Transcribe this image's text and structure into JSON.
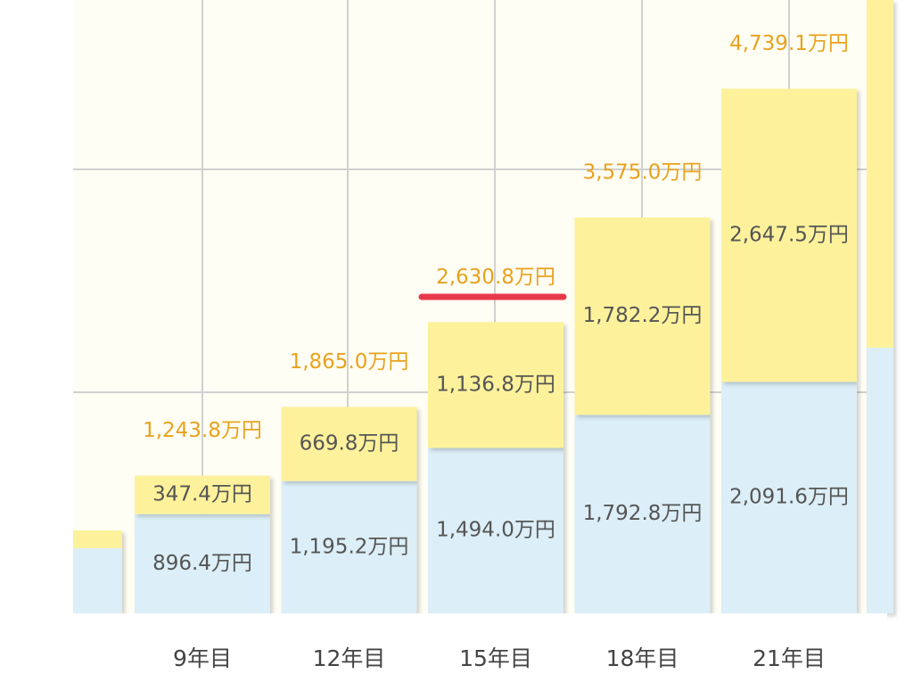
{
  "chart_data": {
    "type": "bar",
    "stacked": true,
    "categories": [
      "9年目",
      "12年目",
      "15年目",
      "18年目",
      "21年目"
    ],
    "series": [
      {
        "color": "#dceef7",
        "values": [
          896.4,
          1195.2,
          1494.0,
          1792.8,
          2091.6
        ],
        "value_labels": [
          "896.4万円",
          "1,195.2万円",
          "1,494.0万円",
          "1,792.8万円",
          "2,091.6万円"
        ]
      },
      {
        "color": "#fdf29b",
        "values": [
          347.4,
          669.8,
          1136.8,
          1782.2,
          2647.5
        ],
        "value_labels": [
          "347.4万円",
          "669.8万円",
          "1,136.8万円",
          "1,782.2万円",
          "2,647.5万円"
        ]
      }
    ],
    "totals": [
      1243.8,
      1865.0,
      2630.8,
      3575.0,
      4739.1
    ],
    "total_labels": [
      "1,243.8万円",
      "1,865.0万円",
      "2,630.8万円",
      "3,575.0万円",
      "4,739.1万円"
    ],
    "total_color": "#e8a21e",
    "ylim": [
      0,
      5540
    ]
  }
}
